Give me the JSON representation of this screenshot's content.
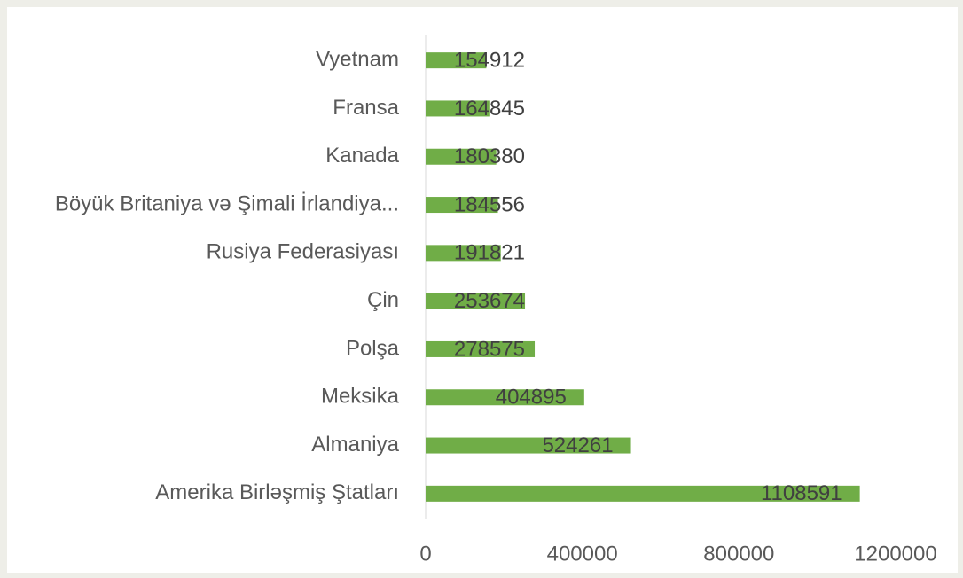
{
  "chart_data": {
    "type": "bar",
    "orientation": "horizontal",
    "categories": [
      "Vyetnam",
      "Fransa",
      "Kanada",
      "Böyük Britaniya və Şimali İrlandiya...",
      "Rusiya Federasiyası",
      "Çin",
      "Polşa",
      "Meksika",
      "Almaniya",
      "Amerika Birləşmiş Ştatları"
    ],
    "values": [
      154912,
      164845,
      180380,
      184556,
      191821,
      253674,
      278575,
      404895,
      524261,
      1108591
    ],
    "color": "#70ad47",
    "xlim": [
      0,
      1200000
    ],
    "xticks": [
      0,
      400000,
      800000,
      1200000
    ],
    "grid": false
  }
}
